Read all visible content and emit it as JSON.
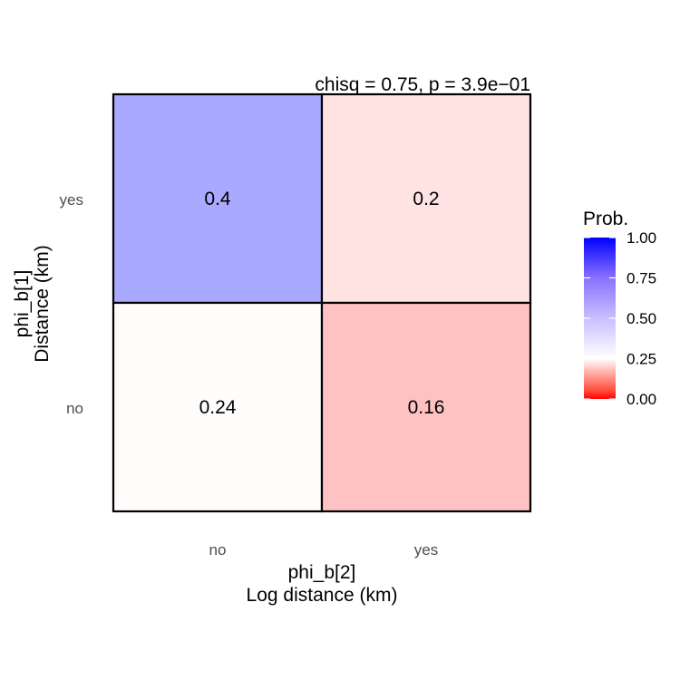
{
  "chart_data": {
    "type": "heatmap",
    "annotation": "chisq = 0.75, p = 3.9e−01",
    "x_categories": [
      "no",
      "yes"
    ],
    "y_categories": [
      "no",
      "yes"
    ],
    "cells": [
      {
        "x": "no",
        "y": "yes",
        "value": 0.4,
        "label": "0.4"
      },
      {
        "x": "yes",
        "y": "yes",
        "value": 0.2,
        "label": "0.2"
      },
      {
        "x": "no",
        "y": "no",
        "value": 0.24,
        "label": "0.24"
      },
      {
        "x": "yes",
        "y": "no",
        "value": 0.16,
        "label": "0.16"
      }
    ],
    "xlabel_line1": "phi_b[2]",
    "xlabel_line2": "Log distance (km)",
    "ylabel_line1": "phi_b[1]",
    "ylabel_line2": "Distance (km)",
    "legend": {
      "title": "Prob.",
      "ticks": [
        "1.00",
        "0.75",
        "0.50",
        "0.25",
        "0.00"
      ],
      "tick_values": [
        1.0,
        0.75,
        0.5,
        0.25,
        0.0
      ],
      "range": [
        0,
        1
      ],
      "midpoint": 0.25,
      "low_color": "#ff0000",
      "mid_color": "#ffffff",
      "high_color": "#0000ff",
      "placement": "right"
    }
  }
}
